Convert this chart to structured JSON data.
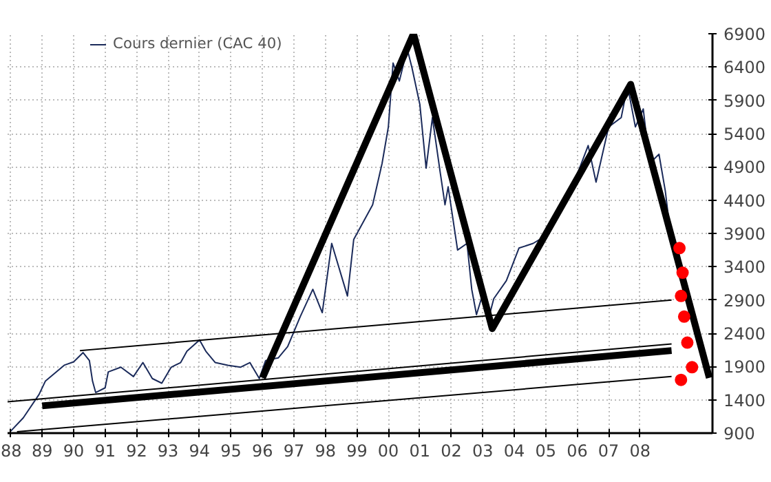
{
  "chart_data": {
    "type": "line",
    "legend": "top",
    "grid": true,
    "marker": "none",
    "line_style": "solid",
    "tick_labels": "xy",
    "xlim": [
      1987.9,
      2010.3
    ],
    "ylim": [
      900,
      6900
    ],
    "xticks": [
      {
        "value": 1988,
        "label": "88"
      },
      {
        "value": 1989,
        "label": "89"
      },
      {
        "value": 1990,
        "label": "90"
      },
      {
        "value": 1991,
        "label": "91"
      },
      {
        "value": 1992,
        "label": "92"
      },
      {
        "value": 1993,
        "label": "93"
      },
      {
        "value": 1994,
        "label": "94"
      },
      {
        "value": 1995,
        "label": "95"
      },
      {
        "value": 1996,
        "label": "96"
      },
      {
        "value": 1997,
        "label": "97"
      },
      {
        "value": 1998,
        "label": "98"
      },
      {
        "value": 1999,
        "label": "99"
      },
      {
        "value": 2000,
        "label": "00"
      },
      {
        "value": 2001,
        "label": "01"
      },
      {
        "value": 2002,
        "label": "02"
      },
      {
        "value": 2003,
        "label": "03"
      },
      {
        "value": 2004,
        "label": "04"
      },
      {
        "value": 2005,
        "label": "05"
      },
      {
        "value": 2006,
        "label": "06"
      },
      {
        "value": 2007,
        "label": "07"
      },
      {
        "value": 2008,
        "label": "08"
      }
    ],
    "yticks": [
      900,
      1400,
      1900,
      2400,
      2900,
      3400,
      3900,
      4400,
      4900,
      5400,
      5900,
      6400,
      6900
    ],
    "series": [
      {
        "name": "Cours dernier (CAC 40)",
        "color": "#1a2a5a",
        "x": [
          1988.0,
          1988.4,
          1988.9,
          1989.1,
          1989.7,
          1990.0,
          1990.3,
          1990.5,
          1990.6,
          1990.7,
          1991.0,
          1991.1,
          1991.5,
          1991.9,
          1992.2,
          1992.5,
          1992.8,
          1993.1,
          1993.4,
          1993.6,
          1994.0,
          1994.2,
          1994.5,
          1994.9,
          1995.3,
          1995.6,
          1995.9,
          1996.1,
          1996.5,
          1996.8,
          1997.2,
          1997.6,
          1997.9,
          1998.2,
          1998.7,
          1998.9,
          1999.5,
          1999.8,
          2000.0,
          2000.15,
          2000.35,
          2000.6,
          2000.75,
          2001.0,
          2001.2,
          2001.4,
          2001.65,
          2001.8,
          2001.9,
          2002.2,
          2002.5,
          2002.65,
          2002.8,
          2003.0,
          2003.2,
          2003.35,
          2003.75,
          2004.15,
          2004.6,
          2004.95,
          2005.1,
          2005.8,
          2006.35,
          2006.6,
          2007.0,
          2007.4,
          2007.6,
          2007.85,
          2008.1,
          2008.3,
          2008.6,
          2008.8,
          2009.0
        ],
        "values": [
          930,
          1130,
          1480,
          1680,
          1920,
          1970,
          2110,
          1990,
          1680,
          1510,
          1580,
          1820,
          1890,
          1750,
          1960,
          1720,
          1650,
          1890,
          1960,
          2130,
          2300,
          2130,
          1960,
          1920,
          1890,
          1960,
          1720,
          1990,
          2030,
          2200,
          2650,
          3060,
          2710,
          3750,
          2960,
          3810,
          4330,
          4950,
          5500,
          6460,
          6190,
          6670,
          6390,
          5840,
          4880,
          5640,
          4810,
          4330,
          4600,
          3650,
          3750,
          3060,
          2680,
          2990,
          2650,
          2920,
          3190,
          3680,
          3750,
          3850,
          3990,
          4540,
          5220,
          4670,
          5500,
          5640,
          6120,
          5500,
          5770,
          4950,
          5090,
          4540,
          3750
        ]
      },
      {
        "color": "#000000",
        "x": [
          1996.0,
          2000.8,
          2003.3,
          2007.7,
          2010.2
        ],
        "values": [
          1730,
          6900,
          2470,
          6140,
          1730
        ]
      },
      {
        "color": "#000000",
        "x": [
          1989.0,
          2009.0
        ],
        "values": [
          1310,
          2140
        ]
      },
      {
        "color": "#000000",
        "x": [
          1990.2,
          2009.0
        ],
        "values": [
          2140,
          2900
        ]
      },
      {
        "color": "#000000",
        "x": [
          1987.9,
          2009.0
        ],
        "values": [
          1370,
          2240
        ]
      },
      {
        "color": "#000000",
        "x": [
          1988.2,
          2009.0
        ],
        "values": [
          920,
          1750
        ]
      },
      {
        "type": "scatter",
        "marker": "circle",
        "color": "#ff0000",
        "x": [
          2009.25,
          2009.35,
          2009.3,
          2009.4,
          2009.5,
          2009.65,
          2009.3
        ],
        "values": [
          3680,
          3310,
          2960,
          2650,
          2260,
          1890,
          1700
        ]
      }
    ]
  }
}
